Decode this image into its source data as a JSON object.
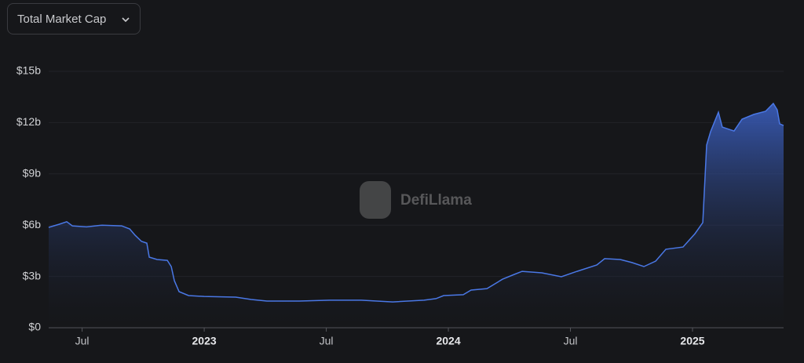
{
  "controls": {
    "metric_select": "Total Market Cap"
  },
  "chart_data": {
    "type": "area",
    "watermark": "DefiLlama",
    "x": [
      2022.363,
      2022.405,
      2022.437,
      2022.46,
      2022.518,
      2022.582,
      2022.662,
      2022.695,
      2022.717,
      2022.743,
      2022.765,
      2022.775,
      2022.807,
      2022.849,
      2022.865,
      2022.878,
      2022.897,
      2022.936,
      2023.0,
      2023.129,
      2023.193,
      2023.257,
      2023.386,
      2023.514,
      2023.643,
      2023.772,
      2023.9,
      2023.949,
      2023.981,
      2024.061,
      2024.093,
      2024.158,
      2024.222,
      2024.27,
      2024.302,
      2024.383,
      2024.463,
      2024.527,
      2024.608,
      2024.64,
      2024.704,
      2024.752,
      2024.801,
      2024.849,
      2024.891,
      2024.961,
      2025.01,
      2025.042,
      2025.058,
      2025.074,
      2025.106,
      2025.122,
      2025.17,
      2025.203,
      2025.251,
      2025.299,
      2025.331,
      2025.347,
      2025.357,
      2025.373
    ],
    "series": [
      {
        "name": "Total Market Cap",
        "color": "#4a78e6",
        "values": [
          5.87,
          6.05,
          6.2,
          5.96,
          5.9,
          6.0,
          5.96,
          5.78,
          5.41,
          5.05,
          4.95,
          4.13,
          3.99,
          3.94,
          3.58,
          2.75,
          2.11,
          1.88,
          1.83,
          1.79,
          1.65,
          1.56,
          1.56,
          1.61,
          1.61,
          1.51,
          1.61,
          1.7,
          1.88,
          1.93,
          2.2,
          2.29,
          2.84,
          3.12,
          3.3,
          3.21,
          2.98,
          3.3,
          3.67,
          4.04,
          3.99,
          3.81,
          3.58,
          3.9,
          4.59,
          4.72,
          5.5,
          6.15,
          10.69,
          11.47,
          12.61,
          11.74,
          11.51,
          12.2,
          12.48,
          12.66,
          13.12,
          12.75,
          11.93,
          11.83
        ]
      }
    ],
    "xlim": [
      2022.363,
      2025.373
    ],
    "xticks": [
      {
        "value": 2022.5,
        "label": "Jul"
      },
      {
        "value": 2023,
        "label": "2023"
      },
      {
        "value": 2023.5,
        "label": "Jul"
      },
      {
        "value": 2024,
        "label": "2024"
      },
      {
        "value": 2024.5,
        "label": "Jul"
      },
      {
        "value": 2025,
        "label": "2025"
      }
    ],
    "ylim": [
      0,
      15
    ],
    "yticks": [
      {
        "value": 0,
        "label": "$0"
      },
      {
        "value": 3,
        "label": "$3b"
      },
      {
        "value": 6,
        "label": "$6b"
      },
      {
        "value": 9,
        "label": "$9b"
      },
      {
        "value": 12,
        "label": "$12b"
      },
      {
        "value": 15,
        "label": "$15b"
      }
    ],
    "grid": true
  }
}
